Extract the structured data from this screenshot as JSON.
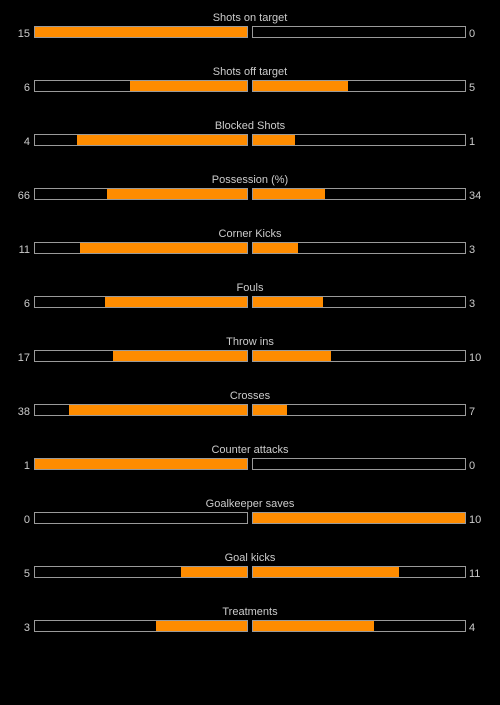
{
  "colors": {
    "background": "#000000",
    "bar_fill": "#ff8c00",
    "bar_border": "#9a9a9a",
    "text": "#cccccc"
  },
  "stats": [
    {
      "label": "Shots on target",
      "home": "15",
      "away": "0",
      "home_fraction": 1.0,
      "away_fraction": 0.0
    },
    {
      "label": "Shots off target",
      "home": "6",
      "away": "5",
      "home_fraction": 0.55,
      "away_fraction": 0.45
    },
    {
      "label": "Blocked Shots",
      "home": "4",
      "away": "1",
      "home_fraction": 0.8,
      "away_fraction": 0.2
    },
    {
      "label": "Possession (%)",
      "home": "66",
      "away": "34",
      "home_fraction": 0.66,
      "away_fraction": 0.34
    },
    {
      "label": "Corner Kicks",
      "home": "11",
      "away": "3",
      "home_fraction": 0.79,
      "away_fraction": 0.21
    },
    {
      "label": "Fouls",
      "home": "6",
      "away": "3",
      "home_fraction": 0.67,
      "away_fraction": 0.33
    },
    {
      "label": "Throw ins",
      "home": "17",
      "away": "10",
      "home_fraction": 0.63,
      "away_fraction": 0.37
    },
    {
      "label": "Crosses",
      "home": "38",
      "away": "7",
      "home_fraction": 0.84,
      "away_fraction": 0.16
    },
    {
      "label": "Counter attacks",
      "home": "1",
      "away": "0",
      "home_fraction": 1.0,
      "away_fraction": 0.0
    },
    {
      "label": "Goalkeeper saves",
      "home": "0",
      "away": "10",
      "home_fraction": 0.0,
      "away_fraction": 1.0
    },
    {
      "label": "Goal kicks",
      "home": "5",
      "away": "11",
      "home_fraction": 0.31,
      "away_fraction": 0.69
    },
    {
      "label": "Treatments",
      "home": "3",
      "away": "4",
      "home_fraction": 0.43,
      "away_fraction": 0.57
    }
  ]
}
